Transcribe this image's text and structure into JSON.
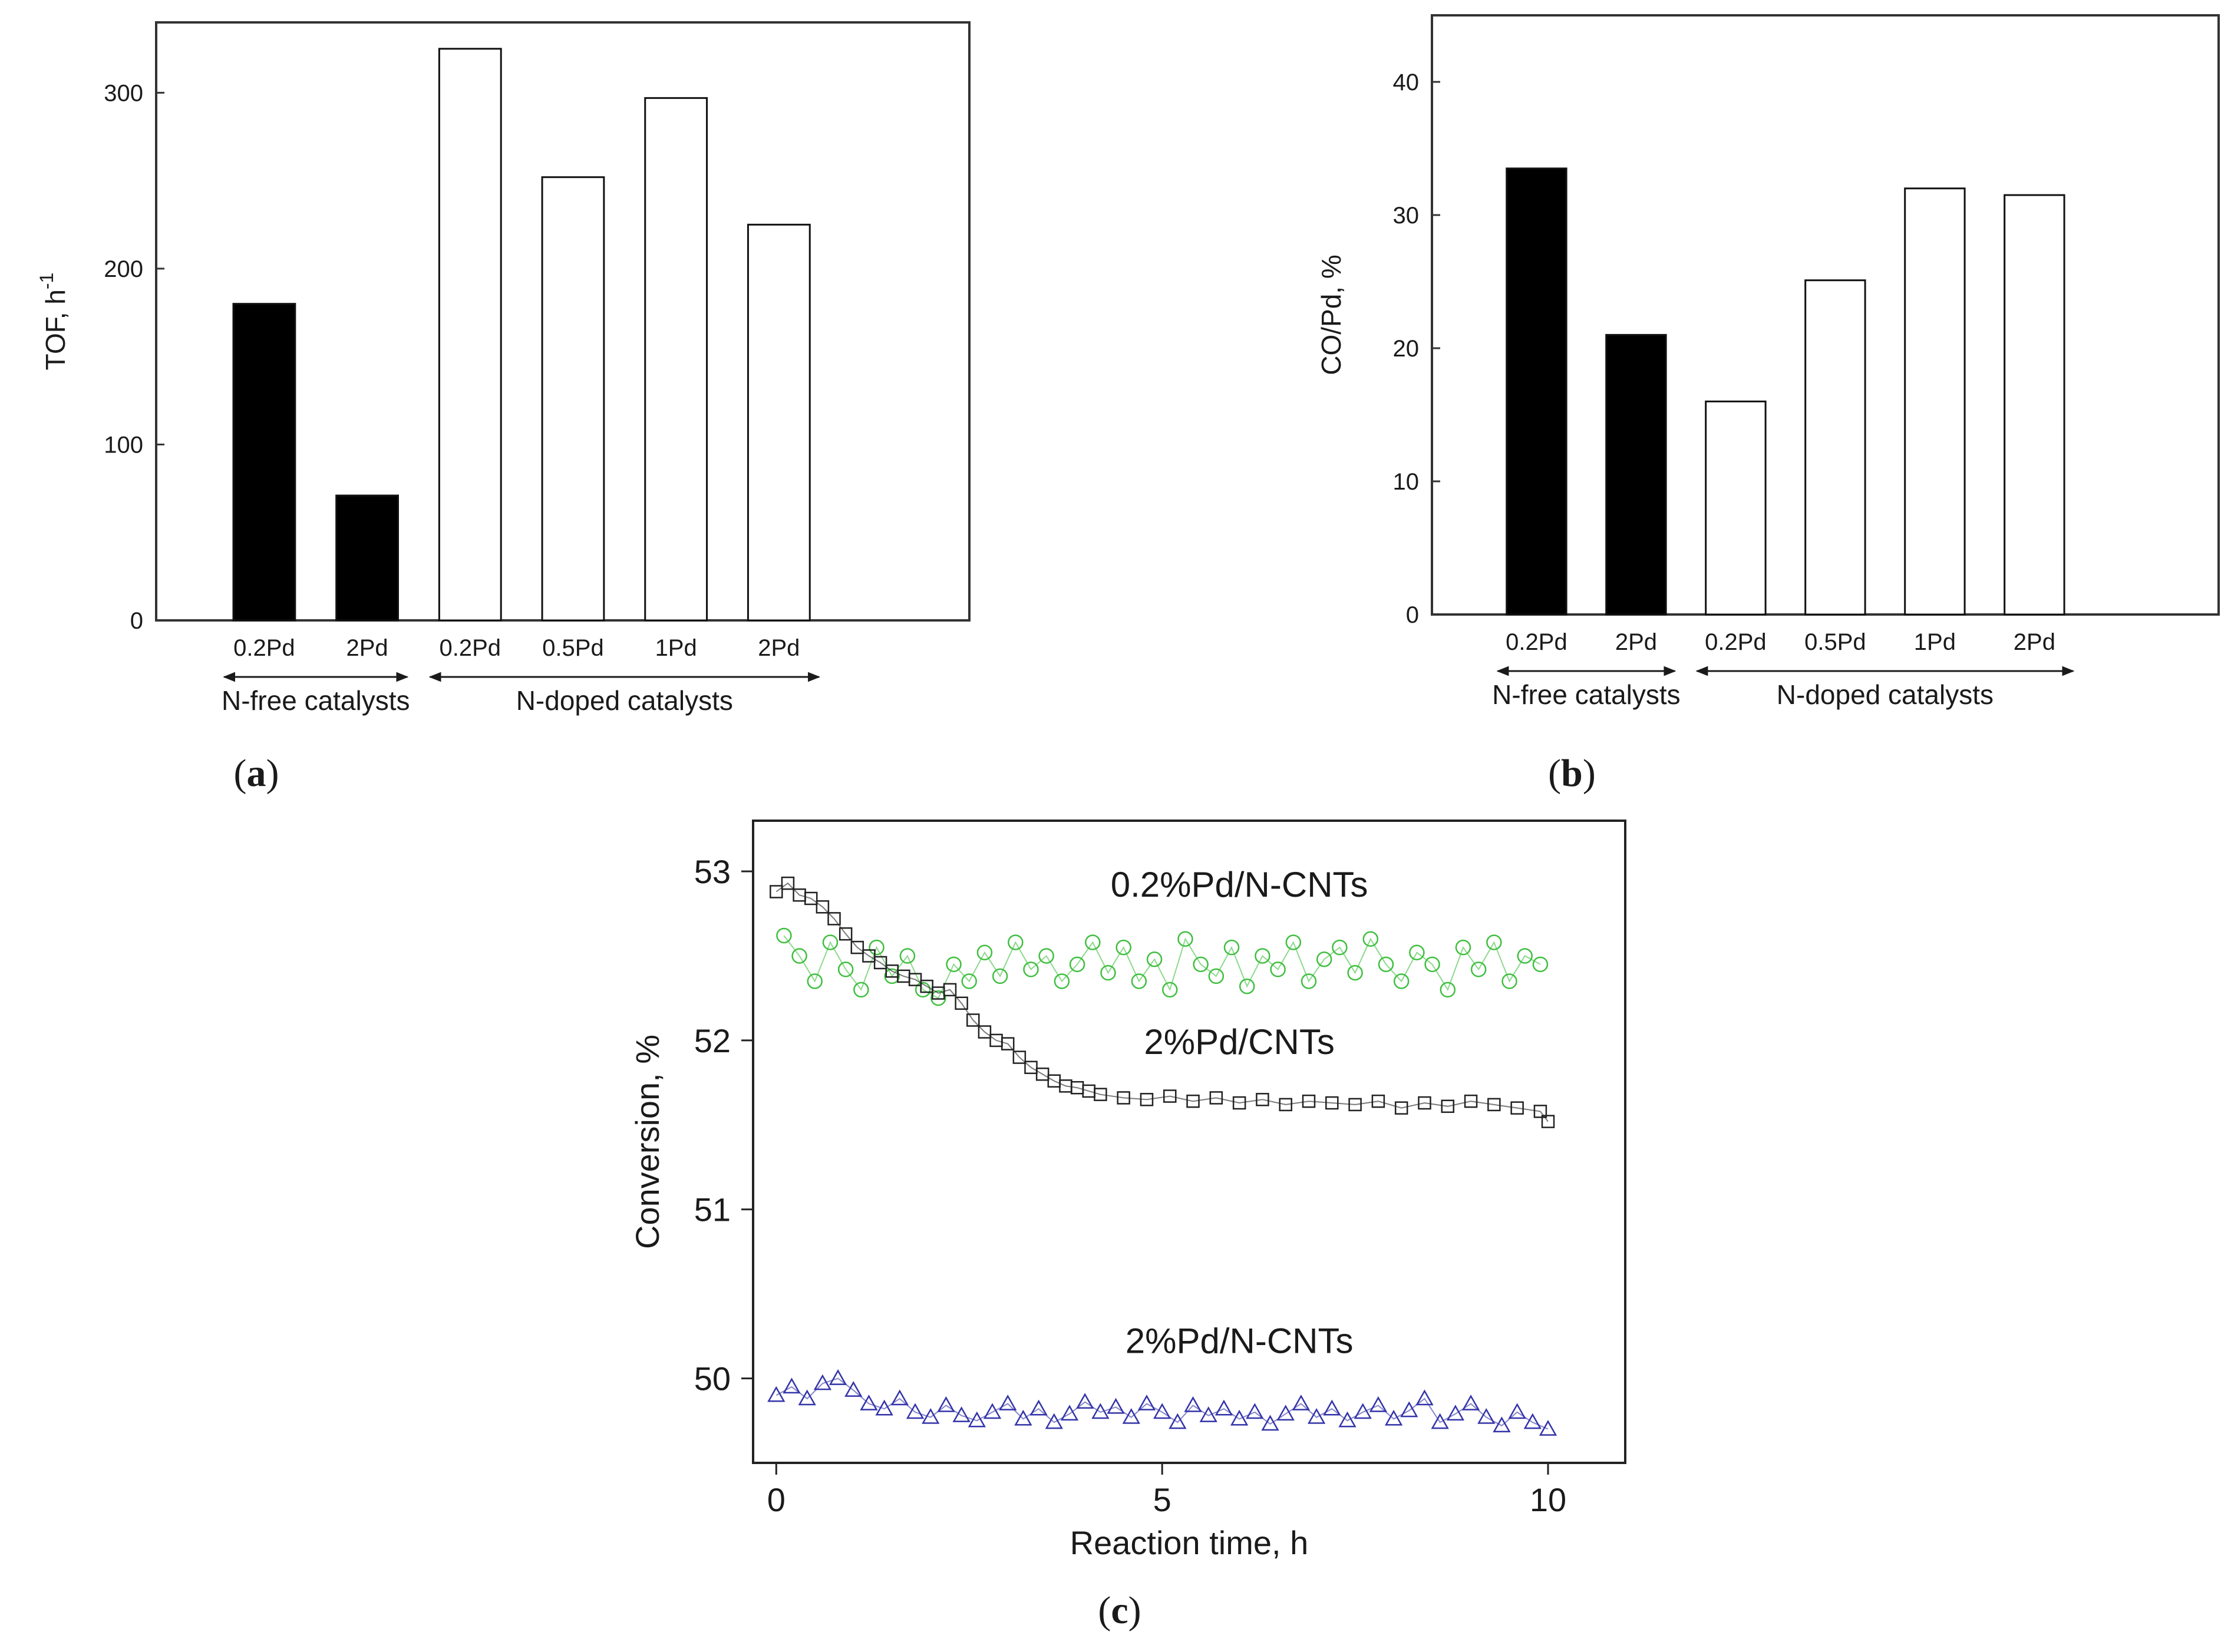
{
  "chart_data": [
    {
      "panel": "a",
      "type": "bar",
      "ylabel": "TOF, h",
      "ylabel_sup": "-1",
      "ylim": [
        0,
        340
      ],
      "yticks": [
        0,
        100,
        200,
        300
      ],
      "categories": [
        "0.2Pd",
        "2Pd",
        "0.2Pd",
        "0.5Pd",
        "1Pd",
        "2Pd"
      ],
      "values": [
        180,
        71,
        325,
        252,
        297,
        225
      ],
      "fills": [
        "#000000",
        "#000000",
        "#ffffff",
        "#ffffff",
        "#ffffff",
        "#ffffff"
      ],
      "groups": [
        {
          "label": "N-free catalysts",
          "from": 0,
          "to": 1
        },
        {
          "label": "N-doped catalysts",
          "from": 2,
          "to": 5
        }
      ],
      "label_parts": [
        "(",
        "a",
        ")"
      ]
    },
    {
      "panel": "b",
      "type": "bar",
      "ylabel": "CO/Pd, %",
      "ylim": [
        0,
        45
      ],
      "yticks": [
        0,
        10,
        20,
        30,
        40
      ],
      "categories": [
        "0.2Pd",
        "2Pd",
        "0.2Pd",
        "0.5Pd",
        "1Pd",
        "2Pd"
      ],
      "values": [
        33.5,
        21,
        16,
        25.1,
        32,
        31.5
      ],
      "fills": [
        "#000000",
        "#000000",
        "#ffffff",
        "#ffffff",
        "#ffffff",
        "#ffffff"
      ],
      "groups": [
        {
          "label": "N-free catalysts",
          "from": 0,
          "to": 1
        },
        {
          "label": "N-doped catalysts",
          "from": 2,
          "to": 5
        }
      ],
      "label_parts": [
        "(",
        "b",
        ")"
      ]
    },
    {
      "panel": "c",
      "type": "scatter",
      "xlabel": "Reaction time, h",
      "ylabel": "Conversion, %",
      "xlim": [
        -0.3,
        11
      ],
      "ylim": [
        49.5,
        53.3
      ],
      "xticks": [
        0,
        5,
        10
      ],
      "yticks": [
        50,
        51,
        52,
        53
      ],
      "series": [
        {
          "name": "0.2%Pd/N-CNTs",
          "marker": "circle",
          "color": "#3fbf3f",
          "label_x": 6.0,
          "label_y": 52.85,
          "x": [
            0.1,
            0.3,
            0.5,
            0.7,
            0.9,
            1.1,
            1.3,
            1.5,
            1.7,
            1.9,
            2.1,
            2.3,
            2.5,
            2.7,
            2.9,
            3.1,
            3.3,
            3.5,
            3.7,
            3.9,
            4.1,
            4.3,
            4.5,
            4.7,
            4.9,
            5.1,
            5.3,
            5.5,
            5.7,
            5.9,
            6.1,
            6.3,
            6.5,
            6.7,
            6.9,
            7.1,
            7.3,
            7.5,
            7.7,
            7.9,
            8.1,
            8.3,
            8.5,
            8.7,
            8.9,
            9.1,
            9.3,
            9.5,
            9.7,
            9.9
          ],
          "y": [
            52.62,
            52.5,
            52.35,
            52.58,
            52.42,
            52.3,
            52.55,
            52.38,
            52.5,
            52.3,
            52.25,
            52.45,
            52.35,
            52.52,
            52.38,
            52.58,
            52.42,
            52.5,
            52.35,
            52.45,
            52.58,
            52.4,
            52.55,
            52.35,
            52.48,
            52.3,
            52.6,
            52.45,
            52.38,
            52.55,
            52.32,
            52.5,
            52.42,
            52.58,
            52.35,
            52.48,
            52.55,
            52.4,
            52.6,
            52.45,
            52.35,
            52.52,
            52.45,
            52.3,
            52.55,
            52.42,
            52.58,
            52.35,
            52.5,
            52.45
          ]
        },
        {
          "name": "2%Pd/CNTs",
          "marker": "square",
          "color": "#222222",
          "label_x": 6.0,
          "label_y": 51.92,
          "x": [
            0.0,
            0.15,
            0.3,
            0.45,
            0.6,
            0.75,
            0.9,
            1.05,
            1.2,
            1.35,
            1.5,
            1.65,
            1.8,
            1.95,
            2.1,
            2.25,
            2.4,
            2.55,
            2.7,
            2.85,
            3.0,
            3.15,
            3.3,
            3.45,
            3.6,
            3.75,
            3.9,
            4.05,
            4.2,
            4.5,
            4.8,
            5.1,
            5.4,
            5.7,
            6.0,
            6.3,
            6.6,
            6.9,
            7.2,
            7.5,
            7.8,
            8.1,
            8.4,
            8.7,
            9.0,
            9.3,
            9.6,
            9.9,
            10.0
          ],
          "y": [
            52.88,
            52.93,
            52.86,
            52.84,
            52.79,
            52.72,
            52.63,
            52.55,
            52.5,
            52.46,
            52.41,
            52.38,
            52.36,
            52.32,
            52.28,
            52.3,
            52.22,
            52.12,
            52.05,
            52.0,
            51.98,
            51.9,
            51.84,
            51.8,
            51.76,
            51.73,
            51.72,
            51.7,
            51.68,
            51.66,
            51.65,
            51.67,
            51.64,
            51.66,
            51.63,
            51.65,
            51.62,
            51.64,
            51.63,
            51.62,
            51.64,
            51.6,
            51.63,
            51.61,
            51.64,
            51.62,
            51.6,
            51.58,
            51.52
          ]
        },
        {
          "name": "2%Pd/N-CNTs",
          "marker": "triangle",
          "color": "#3333aa",
          "label_x": 6.0,
          "label_y": 50.15,
          "x": [
            0.0,
            0.2,
            0.4,
            0.6,
            0.8,
            1.0,
            1.2,
            1.4,
            1.6,
            1.8,
            2.0,
            2.2,
            2.4,
            2.6,
            2.8,
            3.0,
            3.2,
            3.4,
            3.6,
            3.8,
            4.0,
            4.2,
            4.4,
            4.6,
            4.8,
            5.0,
            5.2,
            5.4,
            5.6,
            5.8,
            6.0,
            6.2,
            6.4,
            6.6,
            6.8,
            7.0,
            7.2,
            7.4,
            7.6,
            7.8,
            8.0,
            8.2,
            8.4,
            8.6,
            8.8,
            9.0,
            9.2,
            9.4,
            9.6,
            9.8,
            10.0
          ],
          "y": [
            49.9,
            49.95,
            49.88,
            49.97,
            50.0,
            49.93,
            49.85,
            49.82,
            49.88,
            49.8,
            49.77,
            49.84,
            49.78,
            49.75,
            49.8,
            49.85,
            49.76,
            49.82,
            49.74,
            49.79,
            49.86,
            49.8,
            49.83,
            49.77,
            49.85,
            49.8,
            49.74,
            49.84,
            49.78,
            49.82,
            49.76,
            49.8,
            49.73,
            49.79,
            49.85,
            49.77,
            49.82,
            49.75,
            49.8,
            49.84,
            49.76,
            49.81,
            49.88,
            49.74,
            49.79,
            49.85,
            49.77,
            49.72,
            49.8,
            49.74,
            49.7
          ]
        }
      ],
      "label_parts": [
        "(",
        "c",
        ")"
      ]
    }
  ]
}
